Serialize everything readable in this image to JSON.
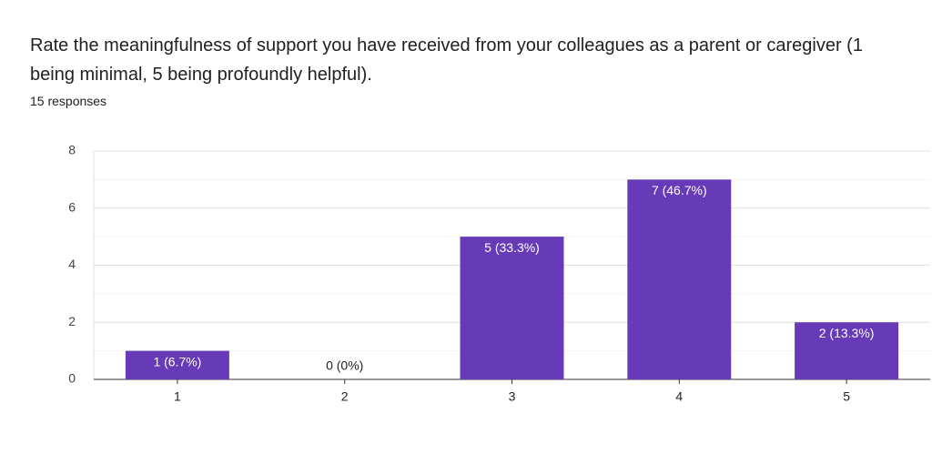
{
  "chart_data": {
    "type": "bar",
    "title": "Rate the meaningfulness of support you have received from your colleagues as a parent or caregiver (1 being minimal, 5 being profoundly helpful).",
    "subtitle": "15 responses",
    "categories": [
      "1",
      "2",
      "3",
      "4",
      "5"
    ],
    "values": [
      1,
      0,
      5,
      7,
      2
    ],
    "value_labels": [
      "1 (6.7%)",
      "0 (0%)",
      "5 (33.3%)",
      "7 (46.7%)",
      "2 (13.3%)"
    ],
    "color": "#673ab7",
    "ylim": [
      0,
      8
    ],
    "yticks": [
      0,
      2,
      4,
      6,
      8
    ],
    "minor_yticks": [
      1,
      3,
      5,
      7
    ],
    "grid": true
  }
}
